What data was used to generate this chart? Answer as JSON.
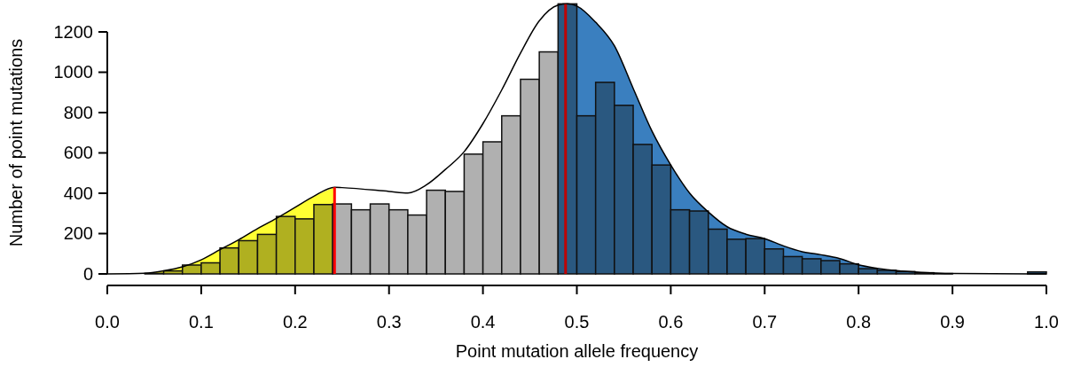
{
  "chart_data": {
    "type": "histogram",
    "xlabel": "Point mutation allele frequency",
    "ylabel": "Number of point mutations",
    "bins": [
      0.04,
      0.06,
      0.08,
      0.1,
      0.12,
      0.14,
      0.16,
      0.18,
      0.2,
      0.22,
      0.24,
      0.26,
      0.28,
      0.3,
      0.32,
      0.34,
      0.36,
      0.38,
      0.4,
      0.42,
      0.44,
      0.46,
      0.48,
      0.5,
      0.52,
      0.54,
      0.56,
      0.58,
      0.6,
      0.62,
      0.64,
      0.66,
      0.68,
      0.7,
      0.72,
      0.74,
      0.76,
      0.78,
      0.8,
      0.82,
      0.84,
      0.86,
      0.88,
      0.9,
      0.92,
      0.94,
      0.96,
      0.98,
      1.0
    ],
    "values": [
      3,
      15,
      44,
      55,
      129,
      165,
      196,
      285,
      273,
      344,
      347,
      318,
      347,
      318,
      292,
      415,
      409,
      594,
      655,
      784,
      965,
      1101,
      1339,
      784,
      950,
      836,
      642,
      540,
      318,
      312,
      222,
      172,
      175,
      124,
      86,
      75,
      66,
      50,
      26,
      18,
      12,
      6,
      2,
      0,
      0,
      null,
      null,
      10
    ],
    "colors": [
      "#b0b020",
      "#b0b020",
      "#b0b020",
      "#b0b020",
      "#b0b020",
      "#b0b020",
      "#b0b020",
      "#b0b020",
      "#b0b020",
      "#b0b020",
      "#b0b0b0",
      "#b0b0b0",
      "#b0b0b0",
      "#b0b0b0",
      "#b0b0b0",
      "#b0b0b0",
      "#b0b0b0",
      "#b0b0b0",
      "#b0b0b0",
      "#b0b0b0",
      "#b0b0b0",
      "#b0b0b0",
      "#2a5880",
      "#2a5880",
      "#2a5880",
      "#2a5880",
      "#2a5880",
      "#2a5880",
      "#2a5880",
      "#2a5880",
      "#2a5880",
      "#2a5880",
      "#2a5880",
      "#2a5880",
      "#2a5880",
      "#2a5880",
      "#2a5880",
      "#2a5880",
      "#2a5880",
      "#2a5880",
      "#2a5880",
      "#2a5880",
      "#2a5880",
      "#2a5880",
      "#2a5880",
      "#2a5880",
      "#2a5880",
      "#2a5880"
    ],
    "series": [
      {
        "type": "area",
        "color": "#ffff33",
        "x": [
          0,
          0.04,
          0.06,
          0.08,
          0.1,
          0.12,
          0.14,
          0.16,
          0.18,
          0.2,
          0.22,
          0.242
        ],
        "values": [
          0,
          3,
          15,
          35,
          70,
          120,
          170,
          225,
          275,
          330,
          385,
          430
        ]
      },
      {
        "type": "area",
        "color": "#3a7fbf",
        "x": [
          0.488,
          0.49,
          0.5,
          0.52,
          0.54,
          0.56,
          0.58,
          0.6,
          0.62,
          0.64,
          0.66,
          0.68,
          0.7,
          0.72,
          0.74,
          0.76,
          0.78,
          0.8,
          0.82,
          0.84,
          0.86,
          0.88,
          0.9,
          1.0
        ],
        "values": [
          1338,
          1339,
          1328,
          1248,
          1131,
          920,
          708,
          540,
          401,
          307,
          234,
          197,
          175,
          139,
          110,
          95,
          76,
          45,
          28,
          16,
          10,
          5,
          2,
          0
        ]
      },
      {
        "type": "line",
        "color": "#000000",
        "x": [
          0,
          0.04,
          0.06,
          0.08,
          0.1,
          0.12,
          0.14,
          0.16,
          0.18,
          0.2,
          0.22,
          0.242,
          0.25,
          0.3,
          0.32,
          0.34,
          0.36,
          0.38,
          0.4,
          0.42,
          0.44,
          0.46,
          0.48,
          0.49,
          0.5,
          0.52,
          0.54,
          0.56,
          0.58,
          0.6,
          0.62,
          0.64,
          0.66,
          0.68,
          0.7,
          0.72,
          0.74,
          0.76,
          0.78,
          0.8,
          0.82,
          0.84,
          0.86,
          0.88,
          0.9,
          1.0
        ],
        "values": [
          0,
          3,
          15,
          35,
          70,
          120,
          170,
          225,
          275,
          330,
          385,
          430,
          428,
          409,
          401,
          442,
          518,
          606,
          745,
          912,
          1095,
          1255,
          1333,
          1339,
          1328,
          1248,
          1131,
          920,
          708,
          540,
          401,
          307,
          234,
          197,
          175,
          139,
          110,
          95,
          76,
          45,
          28,
          16,
          10,
          5,
          2,
          0
        ]
      }
    ],
    "ref_lines": [
      {
        "axis": "x",
        "value": 0.242,
        "color": "#ff0000"
      },
      {
        "axis": "x",
        "value": 0.488,
        "color": "#c00000"
      }
    ],
    "xlim": [
      0,
      1
    ],
    "xticks": [
      "0.0",
      0.1,
      0.2,
      0.3,
      0.4,
      0.5,
      0.6,
      0.7,
      0.8,
      0.9,
      "1.0"
    ],
    "ylim": [
      0,
      1345
    ],
    "yticks": [
      0,
      200,
      400,
      600,
      800,
      1000,
      1200
    ],
    "grid": false
  }
}
